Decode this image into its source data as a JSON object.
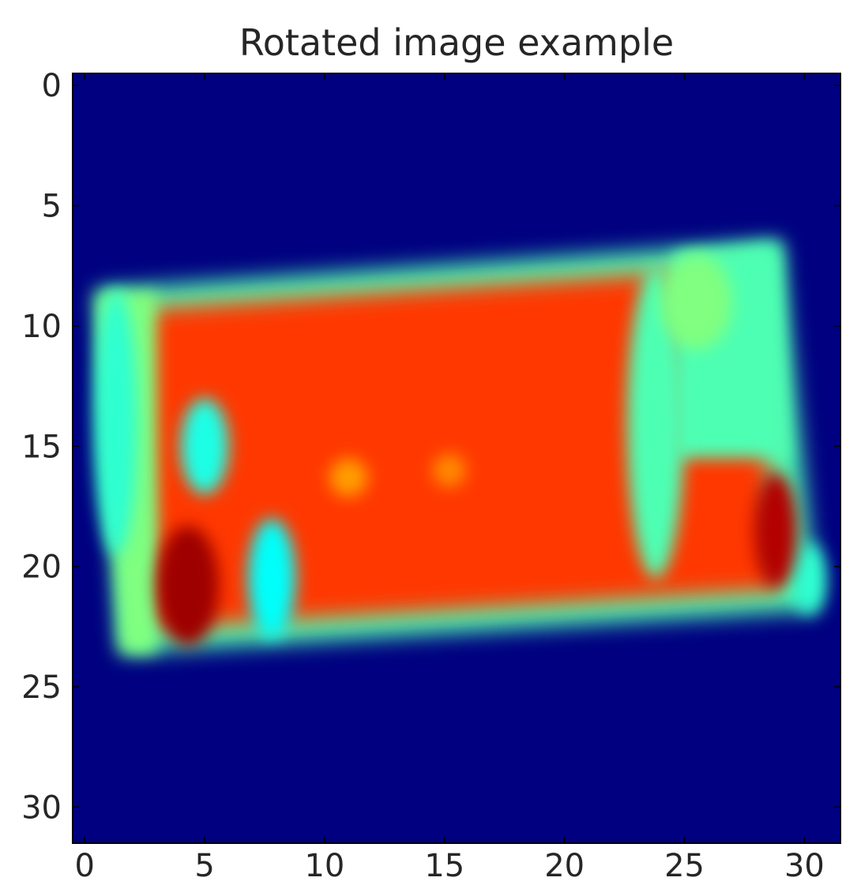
{
  "chart_data": {
    "type": "heatmap",
    "title": "Rotated image example",
    "colormap": "jet",
    "x_ticks": [
      0,
      5,
      10,
      15,
      20,
      25,
      30
    ],
    "y_ticks": [
      0,
      5,
      10,
      15,
      20,
      25,
      30
    ],
    "xlim": [
      -0.5,
      31.5
    ],
    "ylim": [
      31.5,
      -0.5
    ],
    "value_range": [
      0,
      1
    ],
    "y_axis_direction": "down",
    "shape": {
      "rows": 32,
      "cols": 32
    },
    "values_note": "",
    "background_value": 0.0,
    "regions": [
      {
        "name": "rotated-quad",
        "corners_xy": [
          [
            0.5,
            8.5
          ],
          [
            29.0,
            6.5
          ],
          [
            30.5,
            21.8
          ],
          [
            1.5,
            23.6
          ]
        ],
        "value": 0.82
      },
      {
        "name": "left-edge",
        "corners_xy": [
          [
            0.5,
            8.6
          ],
          [
            3.0,
            8.6
          ],
          [
            3.0,
            23.6
          ],
          [
            1.5,
            23.6
          ]
        ],
        "value": 0.5
      },
      {
        "name": "right-edge",
        "corners_xy": [
          [
            24.5,
            7.0
          ],
          [
            29.0,
            6.5
          ],
          [
            29.3,
            15.5
          ],
          [
            24.5,
            15.5
          ]
        ],
        "value": 0.45
      }
    ],
    "hot_spots": [
      {
        "x": 4.3,
        "y": 20.8,
        "rx": 1.3,
        "ry": 2.5,
        "value": 0.97
      },
      {
        "x": 28.8,
        "y": 18.5,
        "rx": 0.9,
        "ry": 2.4,
        "value": 0.95
      },
      {
        "x": 11.0,
        "y": 16.3,
        "rx": 0.8,
        "ry": 0.8,
        "value": 0.72
      },
      {
        "x": 15.2,
        "y": 16.0,
        "rx": 0.7,
        "ry": 0.7,
        "value": 0.74
      }
    ],
    "cool_bands": [
      {
        "x": 1.3,
        "y": 14.0,
        "rx": 0.9,
        "ry": 5.5,
        "value": 0.42
      },
      {
        "x": 5.0,
        "y": 15.0,
        "rx": 1.0,
        "ry": 2.0,
        "value": 0.4
      },
      {
        "x": 7.8,
        "y": 20.5,
        "rx": 1.0,
        "ry": 2.5,
        "value": 0.38
      },
      {
        "x": 23.8,
        "y": 14.0,
        "rx": 1.2,
        "ry": 6.5,
        "value": 0.45
      },
      {
        "x": 25.5,
        "y": 9.0,
        "rx": 1.5,
        "ry": 2.0,
        "value": 0.5
      },
      {
        "x": 30.2,
        "y": 20.5,
        "rx": 0.7,
        "ry": 1.5,
        "value": 0.42
      }
    ]
  }
}
